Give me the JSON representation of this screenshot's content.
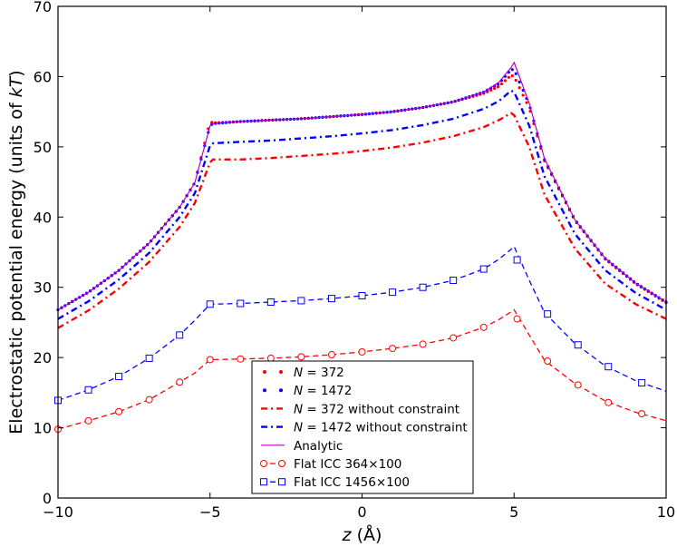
{
  "chart_data": {
    "type": "line",
    "title": "",
    "xlabel_italic": "z",
    "xlabel_rest": " (Å)",
    "ylabel_main": "Electrostatic potential energy (units of ",
    "ylabel_italic": "kT",
    "ylabel_end": ")",
    "xlim": [
      -10,
      10
    ],
    "ylim": [
      0,
      70
    ],
    "xticks": [
      -10,
      -5,
      0,
      5,
      10
    ],
    "xtick_labels": [
      "−10",
      "−5",
      "0",
      "5",
      "10"
    ],
    "yticks": [
      0,
      10,
      20,
      30,
      40,
      50,
      60,
      70
    ],
    "ytick_labels": [
      "0",
      "10",
      "20",
      "30",
      "40",
      "50",
      "60",
      "70"
    ],
    "grid": false,
    "legend_position": "lower-center",
    "series": [
      {
        "name_italic": "N",
        "name_rest": " = 372",
        "style": "dotted-markers",
        "color": "#ff0000",
        "x": [
          -10,
          -9,
          -8,
          -7,
          -6,
          -5.5,
          -5,
          -4.9,
          -4,
          -3,
          -2,
          -1,
          0,
          1,
          2,
          3,
          4,
          4.5,
          4.9,
          5,
          5.5,
          6,
          7,
          8,
          9,
          10
        ],
        "y": [
          26.8,
          29.3,
          32.4,
          36.3,
          41.4,
          44.9,
          53.6,
          53.4,
          53.6,
          53.8,
          54.0,
          54.3,
          54.6,
          55.0,
          55.6,
          56.4,
          57.6,
          58.6,
          60.2,
          60.0,
          55.5,
          48.0,
          39.5,
          34.0,
          30.5,
          27.8
        ]
      },
      {
        "name_italic": "N",
        "name_rest": " = 1472",
        "style": "dotted-markers",
        "color": "#0000ff",
        "x": [
          -10,
          -9,
          -8,
          -7,
          -6,
          -5.5,
          -5,
          -4.9,
          -4,
          -3,
          -2,
          -1,
          0,
          1,
          2,
          3,
          4,
          4.5,
          4.9,
          5,
          5.5,
          6,
          7,
          8,
          9,
          10
        ],
        "y": [
          26.8,
          29.3,
          32.4,
          36.3,
          41.4,
          44.9,
          53.0,
          53.3,
          53.6,
          53.8,
          54.0,
          54.3,
          54.6,
          55.0,
          55.6,
          56.4,
          57.8,
          59.0,
          61.0,
          61.0,
          56.0,
          48.2,
          39.6,
          34.1,
          30.6,
          27.9
        ]
      },
      {
        "name_italic": "N",
        "name_rest": " = 372 without constraint",
        "style": "dashdot",
        "color": "#ff0000",
        "x": [
          -10,
          -9,
          -8,
          -7,
          -6,
          -5.5,
          -5,
          -4.9,
          -4,
          -3,
          -2,
          -1,
          0,
          1,
          2,
          3,
          4,
          4.5,
          4.9,
          5,
          5.5,
          6,
          7,
          8,
          9,
          10
        ],
        "y": [
          24.2,
          26.7,
          29.8,
          33.6,
          38.6,
          42.0,
          47.8,
          48.2,
          48.2,
          48.4,
          48.7,
          49.0,
          49.4,
          49.9,
          50.6,
          51.5,
          52.8,
          53.8,
          54.8,
          54.5,
          50.0,
          43.2,
          35.5,
          30.5,
          27.6,
          25.5
        ]
      },
      {
        "name_italic": "N",
        "name_rest": " = 1472 without constraint",
        "style": "dashdot",
        "color": "#0000ff",
        "x": [
          -10,
          -9,
          -8,
          -7,
          -6,
          -5.5,
          -5,
          -4.9,
          -4,
          -3,
          -2,
          -1,
          0,
          1,
          2,
          3,
          4,
          4.5,
          4.9,
          5,
          5.5,
          6,
          7,
          8,
          9,
          10
        ],
        "y": [
          25.5,
          28.0,
          31.1,
          34.9,
          40.0,
          43.4,
          50.2,
          50.5,
          50.7,
          50.9,
          51.2,
          51.5,
          51.9,
          52.4,
          53.1,
          54.0,
          55.4,
          56.5,
          58.0,
          57.8,
          53.0,
          45.8,
          37.6,
          32.4,
          29.2,
          26.8
        ]
      },
      {
        "name": "Analytic",
        "style": "solid",
        "color": "#bf00bf",
        "x": [
          -10,
          -9,
          -8,
          -7,
          -6,
          -5.5,
          -5,
          -4.9,
          -4,
          -3,
          -2,
          -1,
          0,
          1,
          2,
          3,
          4,
          4.5,
          4.9,
          5,
          5.5,
          6,
          7,
          8,
          9,
          10
        ],
        "y": [
          26.8,
          29.3,
          32.4,
          36.3,
          41.4,
          44.9,
          53.0,
          53.3,
          53.6,
          53.8,
          54.0,
          54.3,
          54.6,
          55.0,
          55.6,
          56.4,
          57.8,
          59.2,
          61.3,
          62.0,
          56.2,
          48.3,
          39.6,
          34.1,
          30.6,
          27.9
        ]
      },
      {
        "name": "Flat ICC 364×100",
        "style": "dashed-circles",
        "color": "#ff0000",
        "x": [
          -10,
          -9,
          -8,
          -7,
          -6,
          -5.5,
          -5,
          -4.9,
          -4,
          -3,
          -2,
          -1,
          0,
          1,
          2,
          3,
          4,
          4.5,
          4.9,
          5,
          5.5,
          6,
          7,
          8,
          9,
          10
        ],
        "y": [
          9.8,
          11.0,
          12.3,
          14.0,
          16.5,
          17.8,
          19.7,
          19.7,
          19.8,
          19.9,
          20.1,
          20.4,
          20.8,
          21.3,
          21.9,
          22.8,
          24.3,
          25.4,
          26.5,
          26.8,
          23.2,
          19.6,
          16.3,
          13.8,
          12.2,
          11.0
        ],
        "marker_x": [
          -10,
          -9,
          -8,
          -7,
          -6,
          -5,
          -4,
          -3,
          -2,
          -1,
          0,
          1,
          2,
          3,
          4,
          5.1,
          6.1,
          7.1,
          8.1,
          9.2
        ],
        "marker_y": [
          9.8,
          11.0,
          12.3,
          14.0,
          16.5,
          19.7,
          19.8,
          19.9,
          20.1,
          20.4,
          20.8,
          21.3,
          21.9,
          22.8,
          24.3,
          25.5,
          19.5,
          16.1,
          13.6,
          12.0
        ]
      },
      {
        "name": "Flat ICC 1456×100",
        "style": "dashed-squares",
        "color": "#0000ff",
        "x": [
          -10,
          -9,
          -8,
          -7,
          -6,
          -5.5,
          -5,
          -4.9,
          -4,
          -3,
          -2,
          -1,
          0,
          1,
          2,
          3,
          4,
          4.5,
          4.9,
          5,
          5.5,
          6,
          7,
          8,
          9,
          10
        ],
        "y": [
          13.9,
          15.4,
          17.3,
          19.9,
          23.2,
          25.3,
          27.6,
          27.6,
          27.7,
          27.9,
          28.1,
          28.4,
          28.8,
          29.3,
          30.0,
          31.0,
          32.6,
          34.0,
          35.4,
          35.8,
          31.0,
          26.4,
          22.0,
          18.8,
          16.7,
          15.2
        ],
        "marker_x": [
          -10,
          -9,
          -8,
          -7,
          -6,
          -5,
          -4,
          -3,
          -2,
          -1,
          0,
          1,
          2,
          3,
          4,
          5.1,
          6.1,
          7.1,
          8.1,
          9.2
        ],
        "marker_y": [
          13.9,
          15.4,
          17.3,
          19.9,
          23.2,
          27.6,
          27.7,
          27.9,
          28.1,
          28.4,
          28.8,
          29.3,
          30.0,
          31.0,
          32.6,
          33.9,
          26.2,
          21.8,
          18.7,
          16.4
        ]
      }
    ]
  }
}
